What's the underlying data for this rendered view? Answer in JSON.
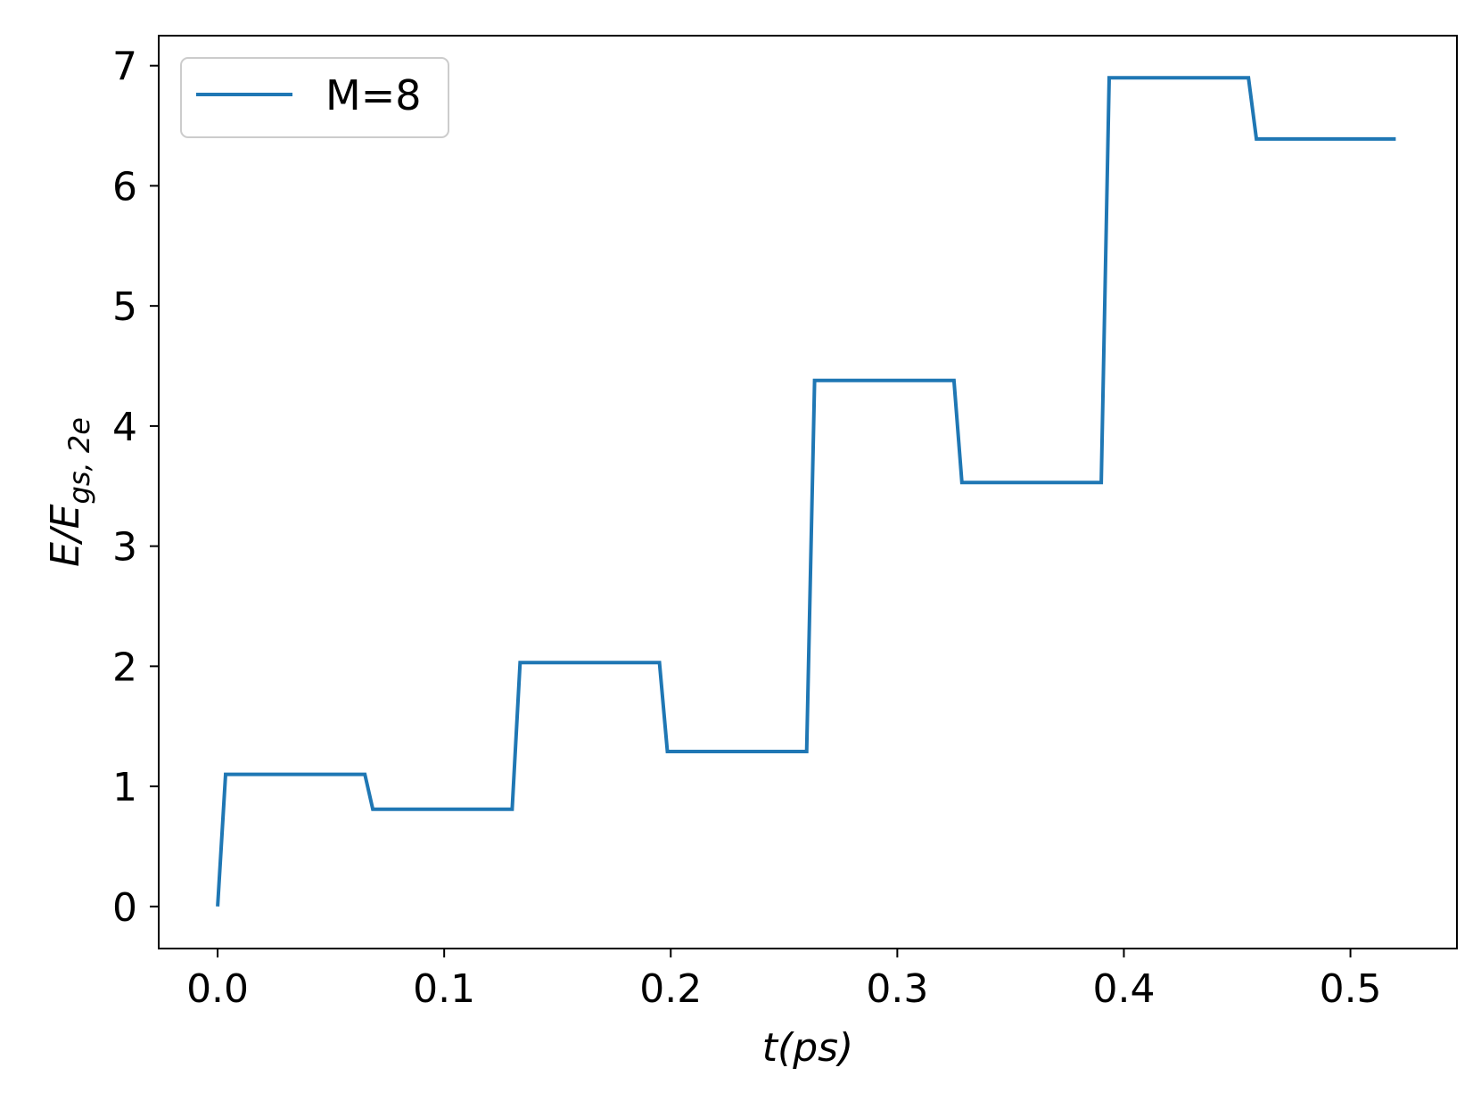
{
  "chart_data": {
    "type": "line",
    "title": "",
    "xlabel": "t(ps)",
    "ylabel": "E/E_{gs,2e}",
    "ylabel_main": "E/E",
    "ylabel_sub": "gs, 2e",
    "xlim": [
      -0.026,
      0.547
    ],
    "ylim": [
      -0.35,
      7.25
    ],
    "xticks": [
      0.0,
      0.1,
      0.2,
      0.3,
      0.4,
      0.5
    ],
    "xtick_labels": [
      "0.0",
      "0.1",
      "0.2",
      "0.3",
      "0.4",
      "0.5"
    ],
    "yticks": [
      0,
      1,
      2,
      3,
      4,
      5,
      6,
      7
    ],
    "ytick_labels": [
      "0",
      "1",
      "2",
      "3",
      "4",
      "5",
      "6",
      "7"
    ],
    "grid": false,
    "legend_position": "upper-left",
    "series": [
      {
        "name": "M=8",
        "color": "#1f77b4",
        "x": [
          0.0,
          0.0035,
          0.065,
          0.0685,
          0.13,
          0.1335,
          0.195,
          0.1985,
          0.26,
          0.2635,
          0.325,
          0.3285,
          0.39,
          0.3935,
          0.455,
          0.4585,
          0.52
        ],
        "y": [
          0.0,
          1.1,
          1.1,
          0.81,
          0.81,
          2.03,
          2.03,
          1.29,
          1.29,
          4.38,
          4.38,
          3.53,
          3.53,
          6.9,
          6.9,
          6.39,
          6.39
        ]
      }
    ]
  }
}
